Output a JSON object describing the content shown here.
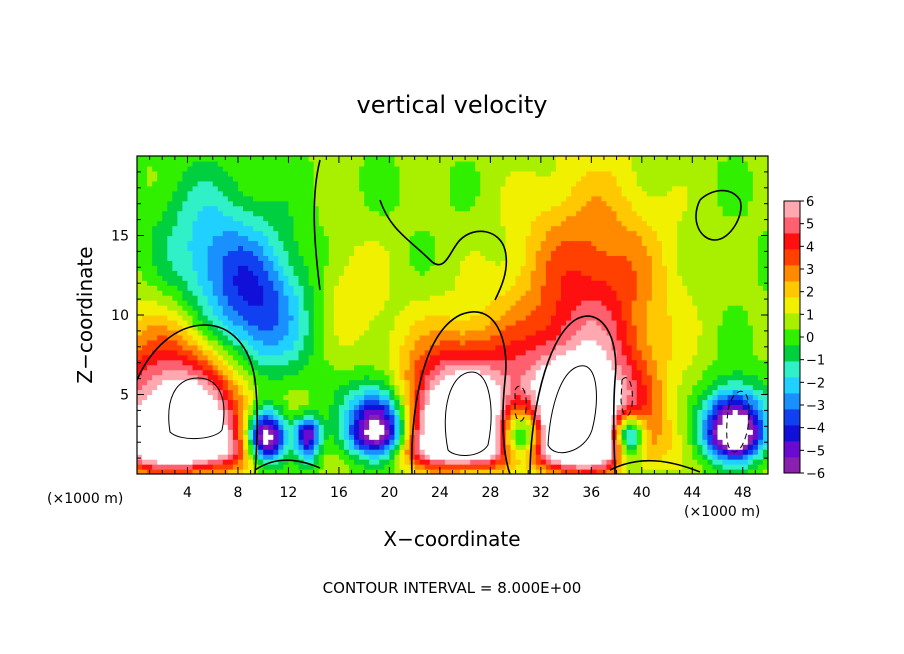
{
  "chart_data": {
    "type": "heatmap",
    "title": "vertical velocity",
    "xlabel": "X−coordinate",
    "ylabel": "Z−coordinate",
    "x_unit_left": "(×1000 m)",
    "x_unit_right": "(×1000 m)",
    "footer": "CONTOUR INTERVAL = 8.000E+00",
    "xlim": [
      0,
      50
    ],
    "ylim": [
      0,
      20
    ],
    "x_ticks": [
      4,
      8,
      12,
      16,
      20,
      24,
      28,
      32,
      36,
      40,
      44,
      48
    ],
    "x_tick_labels": [
      "4",
      "8",
      "12",
      "16",
      "20",
      "24",
      "28",
      "32",
      "36",
      "40",
      "44",
      "48"
    ],
    "y_ticks": [
      5,
      10,
      15
    ],
    "y_tick_labels": [
      "5",
      "10",
      "15"
    ],
    "colorbar": {
      "min": -6,
      "max": 6,
      "ticks": [
        6,
        5,
        4,
        3,
        2,
        1,
        0,
        -1,
        -2,
        -3,
        -4,
        -5,
        -6
      ],
      "tick_labels": [
        "6",
        "5",
        "4",
        "3",
        "2",
        "1",
        "0",
        "−1",
        "−2",
        "−3",
        "−4",
        "−5",
        "−6"
      ],
      "colors": [
        "#8a20b0",
        "#6a0ad0",
        "#1010d8",
        "#1040f0",
        "#1a90ff",
        "#20d0ff",
        "#30f0c8",
        "#00d040",
        "#30f000",
        "#a8f000",
        "#f0f000",
        "#ffc800",
        "#ff8a00",
        "#ff4000",
        "#ff1010",
        "#ff6070",
        "#ffa8b0"
      ]
    },
    "features": [
      {
        "x": 3.5,
        "z": 1.8,
        "w": 6,
        "type": "updraft",
        "amp": 9
      },
      {
        "x": 25.5,
        "z": 2.1,
        "w": 5,
        "type": "updraft",
        "amp": 10
      },
      {
        "x": 35,
        "z": 1.9,
        "w": 5,
        "type": "updraft",
        "amp": 10
      },
      {
        "x": 10.2,
        "z": 2.3,
        "w": 1.6,
        "type": "downdraft",
        "amp": -9
      },
      {
        "x": 19.2,
        "z": 2.7,
        "w": 2.5,
        "type": "downdraft",
        "amp": -9
      },
      {
        "x": 30.5,
        "z": 2.3,
        "w": 2,
        "type": "downdraft",
        "amp": -9
      },
      {
        "x": 38.9,
        "z": 2.4,
        "w": 1.3,
        "type": "downdraft",
        "amp": -8
      },
      {
        "x": 47.3,
        "z": 2.6,
        "w": 2.3,
        "type": "downdraft",
        "amp": -9
      },
      {
        "x": 13.5,
        "z": 2.5,
        "w": 1,
        "type": "downdraft",
        "amp": -6
      },
      {
        "x": 9.5,
        "z": 10,
        "w": 4,
        "type": "downdraft_upper",
        "amp": -4.5
      },
      {
        "x": 5.5,
        "z": 14,
        "w": 4,
        "type": "downdraft_upper",
        "amp": -2.5
      },
      {
        "x": 36,
        "z": 11.5,
        "w": 6,
        "type": "updraft_upper",
        "amp": 3.5
      },
      {
        "x": 17,
        "z": 11.5,
        "w": 3,
        "type": "updraft_upper",
        "amp": 1.3
      }
    ]
  }
}
